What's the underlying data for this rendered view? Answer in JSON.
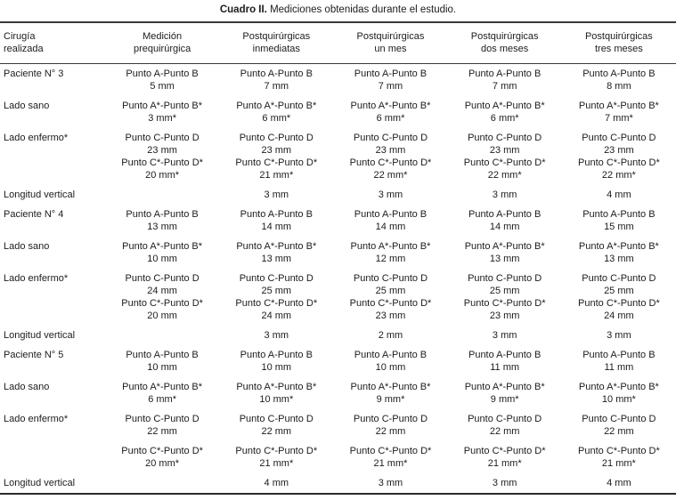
{
  "caption": {
    "label": "Cuadro II.",
    "text": " Mediciones obtenidas durante el estudio."
  },
  "table": {
    "columns": [
      {
        "lines": [
          "Cirugía",
          "realizada"
        ]
      },
      {
        "lines": [
          "Medición",
          "prequirúrgica"
        ]
      },
      {
        "lines": [
          "Postquirúrgicas",
          "inmediatas"
        ]
      },
      {
        "lines": [
          "Postquirúrgicas",
          "un mes"
        ]
      },
      {
        "lines": [
          "Postquirúrgicas",
          "dos meses"
        ]
      },
      {
        "lines": [
          "Postquirúrgicas",
          "tres meses"
        ]
      }
    ],
    "rows": [
      {
        "label": "Paciente N° 3",
        "cells": [
          [
            "Punto A-Punto B",
            "5 mm"
          ],
          [
            "Punto A-Punto B",
            "7 mm"
          ],
          [
            "Punto A-Punto B",
            "7 mm"
          ],
          [
            "Punto A-Punto B",
            "7 mm"
          ],
          [
            "Punto A-Punto B",
            "8 mm"
          ]
        ]
      },
      {
        "label": "Lado sano",
        "cells": [
          [
            "Punto A*-Punto B*",
            "3 mm*"
          ],
          [
            "Punto A*-Punto B*",
            "6 mm*"
          ],
          [
            "Punto A*-Punto B*",
            "6 mm*"
          ],
          [
            "Punto A*-Punto B*",
            "6 mm*"
          ],
          [
            "Punto A*-Punto B*",
            "7 mm*"
          ]
        ]
      },
      {
        "label": "Lado enfermo*",
        "cells": [
          [
            "Punto C-Punto D",
            "23 mm",
            "Punto C*-Punto D*",
            "20 mm*"
          ],
          [
            "Punto C-Punto D",
            "23 mm",
            "Punto C*-Punto D*",
            "21 mm*"
          ],
          [
            "Punto C-Punto D",
            "23 mm",
            "Punto C*-Punto D*",
            "22 mm*"
          ],
          [
            "Punto C-Punto D",
            "23 mm",
            "Punto C*-Punto D*",
            "22 mm*"
          ],
          [
            "Punto C-Punto D",
            "23 mm",
            "Punto C*-Punto D*",
            "22 mm*"
          ]
        ]
      },
      {
        "label": "Longitud vertical",
        "cells": [
          [
            ""
          ],
          [
            "3 mm"
          ],
          [
            "3 mm"
          ],
          [
            "3 mm"
          ],
          [
            "4 mm"
          ]
        ]
      },
      {
        "label": "Paciente N° 4",
        "cells": [
          [
            "Punto A-Punto B",
            "13 mm"
          ],
          [
            "Punto A-Punto B",
            "14 mm"
          ],
          [
            "Punto A-Punto B",
            "14 mm"
          ],
          [
            "Punto A-Punto B",
            "14 mm"
          ],
          [
            "Punto A-Punto B",
            "15 mm"
          ]
        ]
      },
      {
        "label": "Lado sano",
        "cells": [
          [
            "Punto A*-Punto B*",
            "10 mm"
          ],
          [
            "Punto A*-Punto B*",
            "13 mm"
          ],
          [
            "Punto A*-Punto B*",
            "12 mm"
          ],
          [
            "Punto A*-Punto B*",
            "13 mm"
          ],
          [
            "Punto A*-Punto B*",
            "13 mm"
          ]
        ]
      },
      {
        "label": "Lado enfermo*",
        "cells": [
          [
            "Punto C-Punto D",
            "24 mm",
            "Punto C*-Punto D*",
            "20 mm"
          ],
          [
            "Punto C-Punto D",
            "25 mm",
            "Punto C*-Punto D*",
            "24 mm"
          ],
          [
            "Punto C-Punto D",
            "25 mm",
            "Punto C*-Punto D*",
            "23 mm"
          ],
          [
            "Punto C-Punto D",
            "25 mm",
            "Punto C*-Punto D*",
            "23 mm"
          ],
          [
            "Punto C-Punto D",
            "25 mm",
            "Punto C*-Punto D*",
            "24 mm"
          ]
        ]
      },
      {
        "label": "Longitud vertical",
        "cells": [
          [
            ""
          ],
          [
            "3 mm"
          ],
          [
            "2 mm"
          ],
          [
            "3 mm"
          ],
          [
            "3 mm"
          ]
        ]
      },
      {
        "label": "Paciente N° 5",
        "cells": [
          [
            "Punto A-Punto B",
            "10 mm"
          ],
          [
            "Punto A-Punto B",
            "10 mm"
          ],
          [
            "Punto A-Punto B",
            "10 mm"
          ],
          [
            "Punto A-Punto B",
            "11 mm"
          ],
          [
            "Punto A-Punto B",
            "11 mm"
          ]
        ]
      },
      {
        "label": "Lado sano",
        "cells": [
          [
            "Punto A*-Punto B*",
            "6 mm*"
          ],
          [
            "Punto A*-Punto B*",
            "10 mm*"
          ],
          [
            "Punto A*-Punto B*",
            "9 mm*"
          ],
          [
            "Punto A*-Punto B*",
            "9 mm*"
          ],
          [
            "Punto A*-Punto B*",
            "10 mm*"
          ]
        ]
      },
      {
        "label": "Lado enfermo*",
        "cells": [
          [
            "Punto C-Punto D",
            "22 mm"
          ],
          [
            "Punto C-Punto D",
            "22 mm"
          ],
          [
            "Punto C-Punto D",
            "22 mm"
          ],
          [
            "Punto C-Punto D",
            "22 mm"
          ],
          [
            "Punto C-Punto D",
            "22 mm"
          ]
        ]
      },
      {
        "label": "",
        "cells": [
          [
            "Punto C*-Punto D*",
            "20 mm*"
          ],
          [
            "Punto C*-Punto D*",
            "21 mm*"
          ],
          [
            "Punto C*-Punto D*",
            "21 mm*"
          ],
          [
            "Punto C*-Punto D*",
            "21 mm*"
          ],
          [
            "Punto C*-Punto D*",
            "21 mm*"
          ]
        ]
      },
      {
        "label": "Longitud vertical",
        "cells": [
          [
            ""
          ],
          [
            "4 mm"
          ],
          [
            "3 mm"
          ],
          [
            "3 mm"
          ],
          [
            "4 mm"
          ]
        ]
      }
    ]
  },
  "colors": {
    "text": "#1c1c1c",
    "rule": "#3a3a3a",
    "background": "#ffffff"
  }
}
